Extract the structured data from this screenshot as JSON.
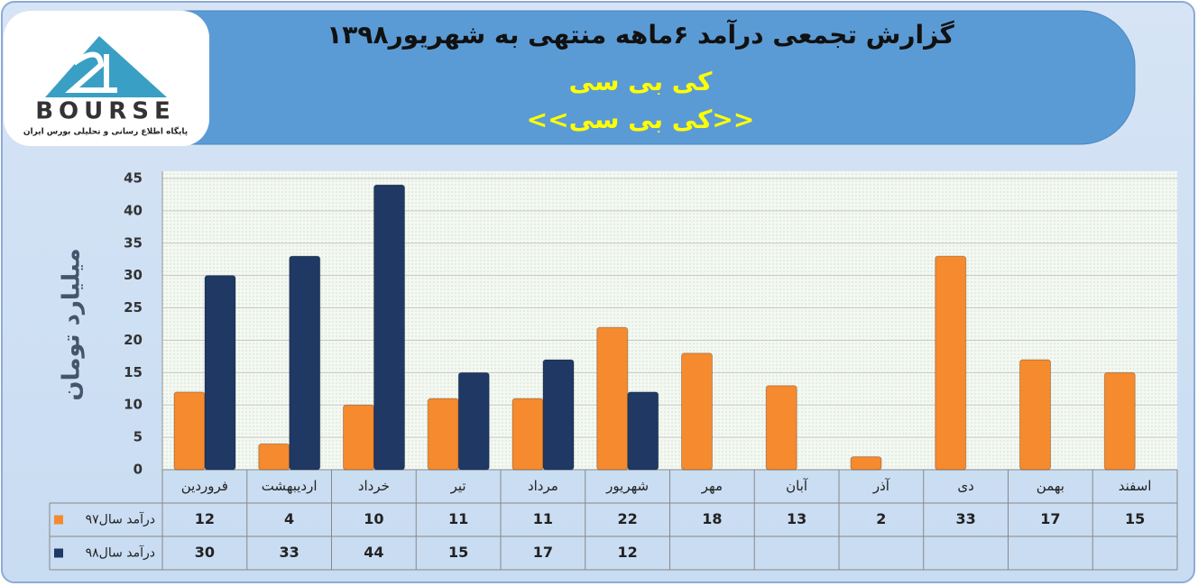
{
  "logo": {
    "brand": "BOURSE",
    "tagline": "پایگاه اطلاع رسانی و تحلیلی بورس ایران"
  },
  "chart_data": {
    "type": "bar",
    "title": "گزارش تجمعی درآمد ۶ماهه منتهی به شهریور۱۳۹۸",
    "subtitle": "کی بی سی",
    "subtitle2": "<<کی بی سی>>",
    "y_label": "میلیارد تومان",
    "categories": [
      "فروردین",
      "اردیبهشت",
      "خرداد",
      "تیر",
      "مرداد",
      "شهریور",
      "مهر",
      "آبان",
      "آذر",
      "دی",
      "بهمن",
      "اسفند"
    ],
    "series": [
      {
        "name": "درآمد سال۹۷",
        "color": "#f58a2e",
        "values": [
          12,
          4,
          10,
          11,
          11,
          22,
          18,
          13,
          2,
          33,
          17,
          15
        ]
      },
      {
        "name": "درآمد سال۹۸",
        "color": "#1f3864",
        "values": [
          30,
          33,
          44,
          15,
          17,
          12,
          null,
          null,
          null,
          null,
          null,
          null
        ]
      }
    ],
    "ylim": [
      0,
      45
    ],
    "yticks": [
      0,
      5,
      10,
      15,
      20,
      25,
      30,
      35,
      40,
      45
    ],
    "grid": true
  }
}
